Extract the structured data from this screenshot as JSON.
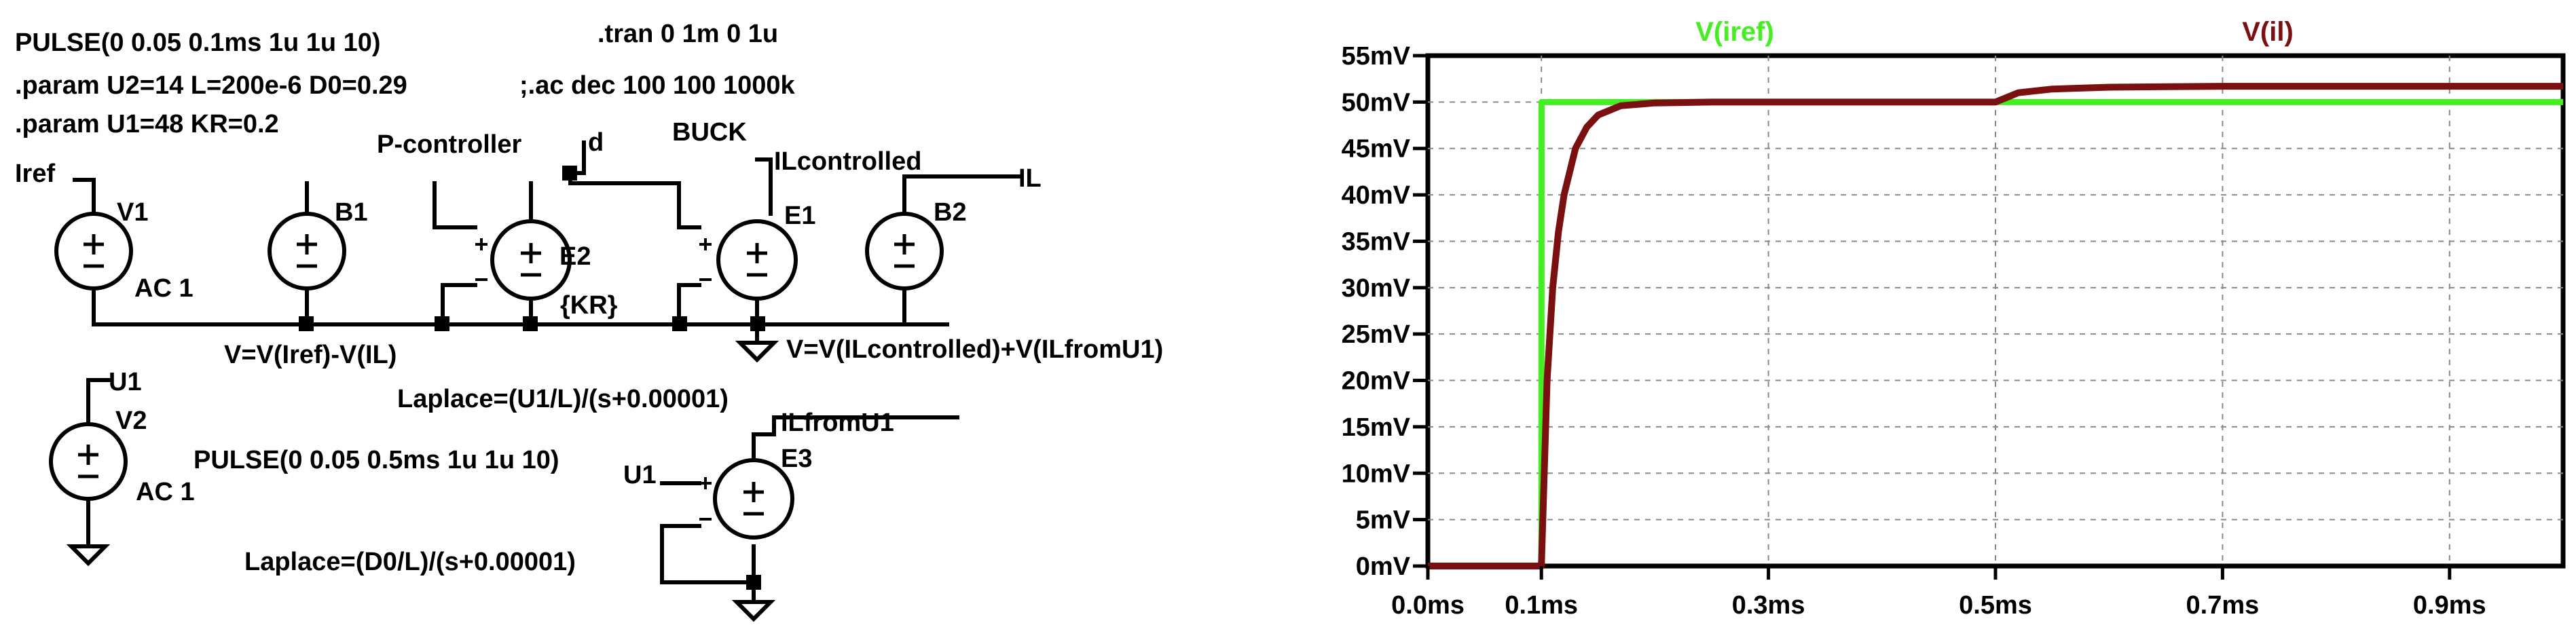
{
  "schematic": {
    "directives": {
      "pulse1": "PULSE(0 0.05 0.1ms 1u 1u 10)",
      "tran": ".tran 0 1m 0 1u",
      "param1": ".param U2=14 L=200e-6 D0=0.29",
      "ac": ";.ac dec 100 100 1000k",
      "param2": ".param U1=48 KR=0.2",
      "pulse2": "PULSE(0 0.05 0.5ms 1u 1u 10)"
    },
    "labels": {
      "p_controller": "P-controller",
      "buck": "BUCK",
      "iref": "Iref",
      "v1": "V1",
      "ac1_top": "AC 1",
      "b1": "B1",
      "e2": "E2",
      "kr": "{KR}",
      "d": "d",
      "ilcontrolled": "ILcontrolled",
      "e1": "E1",
      "b2": "B2",
      "il": "IL",
      "b1_expr": "V=V(Iref)-V(IL)",
      "b2_expr": "V=V(ILcontrolled)+V(ILfromU1)",
      "u1_net": "U1",
      "v2": "V2",
      "ac1_bottom": "AC 1",
      "laplace1": "Laplace=(U1/L)/(s+0.00001)",
      "u1_in": "U1",
      "e3": "E3",
      "ilfromu1": "ILfromU1",
      "laplace2": "Laplace=(D0/L)/(s+0.00001)"
    }
  },
  "plot": {
    "background": "#ffffff",
    "grid_color": "#888888",
    "legend": [
      {
        "name": "V(iref)",
        "color": "#44ee22"
      },
      {
        "name": "V(il)",
        "color": "#7a1010"
      }
    ],
    "y_ticks": [
      "0mV",
      "5mV",
      "10mV",
      "15mV",
      "20mV",
      "25mV",
      "30mV",
      "35mV",
      "40mV",
      "45mV",
      "50mV",
      "55mV"
    ],
    "x_ticks": [
      "0.0ms",
      "0.1ms",
      "0.3ms",
      "0.5ms",
      "0.7ms",
      "0.9ms"
    ]
  },
  "chart_data": {
    "type": "line",
    "xlabel": "",
    "ylabel": "",
    "xlim": [
      0,
      1.0
    ],
    "ylim": [
      0,
      55
    ],
    "x_unit": "ms",
    "y_unit": "mV",
    "grid": true,
    "legend_placement": "top",
    "x_tick_values": [
      0.0,
      0.1,
      0.3,
      0.5,
      0.7,
      0.9
    ],
    "y_tick_values": [
      0,
      5,
      10,
      15,
      20,
      25,
      30,
      35,
      40,
      45,
      50,
      55
    ],
    "series": [
      {
        "name": "V(iref)",
        "color": "#44ee22",
        "x": [
          0,
          0.1,
          0.1001,
          1.0
        ],
        "y": [
          0,
          0,
          50,
          50
        ]
      },
      {
        "name": "V(il)",
        "color": "#7a1010",
        "x": [
          0,
          0.1,
          0.105,
          0.11,
          0.115,
          0.12,
          0.13,
          0.14,
          0.15,
          0.17,
          0.2,
          0.25,
          0.3,
          0.5,
          0.52,
          0.55,
          0.6,
          0.7,
          0.8,
          1.0
        ],
        "y": [
          0,
          0,
          20,
          30,
          36,
          40,
          45,
          47.3,
          48.6,
          49.6,
          49.9,
          50,
          50,
          50,
          51,
          51.4,
          51.6,
          51.7,
          51.7,
          51.7
        ]
      }
    ]
  }
}
